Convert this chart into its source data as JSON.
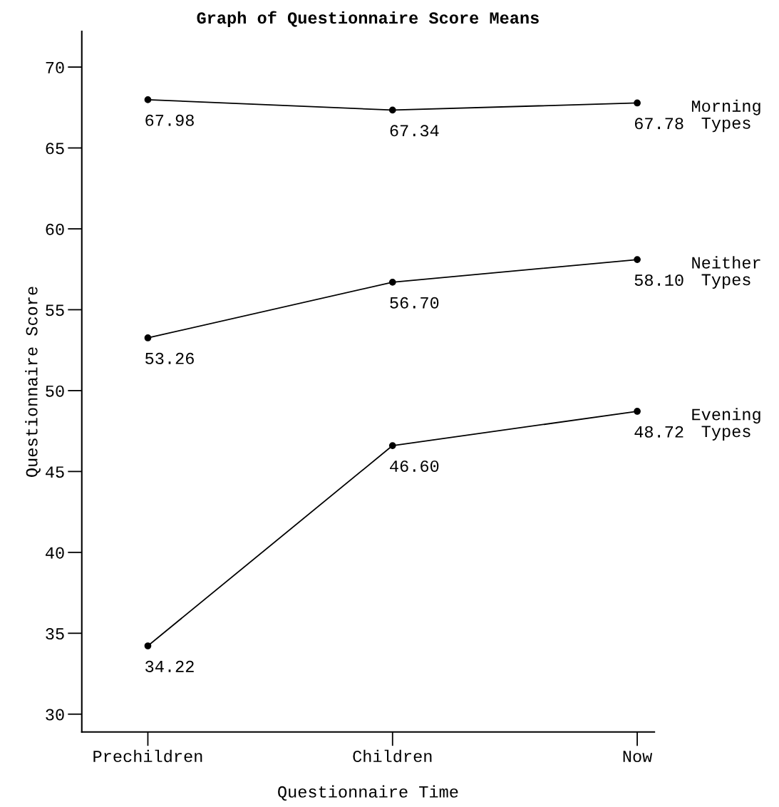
{
  "chart_data": {
    "type": "line",
    "title": "Graph of Questionnaire Score Means",
    "xlabel": "Questionnaire Time",
    "ylabel": "Questionnaire Score",
    "categories": [
      "Prechildren",
      "Children",
      "Now"
    ],
    "series": [
      {
        "name": "Morning Types",
        "color": "#000000",
        "values": [
          67.98,
          67.34,
          67.78
        ],
        "value_labels": [
          "67.98",
          "67.34",
          "67.78"
        ]
      },
      {
        "name": "Neither Types",
        "color": "#000000",
        "values": [
          53.26,
          56.7,
          58.1
        ],
        "value_labels": [
          "53.26",
          "56.70",
          "58.10"
        ]
      },
      {
        "name": "Evening Types",
        "color": "#000000",
        "values": [
          34.22,
          46.6,
          48.72
        ],
        "value_labels": [
          "34.22",
          "46.60",
          "48.72"
        ]
      }
    ],
    "ylim": [
      28.9,
      72.2
    ],
    "yticks": [
      30,
      35,
      40,
      45,
      50,
      55,
      60,
      65,
      70
    ],
    "grid": false,
    "legend": false,
    "marker": "circle",
    "line_style": "solid"
  }
}
